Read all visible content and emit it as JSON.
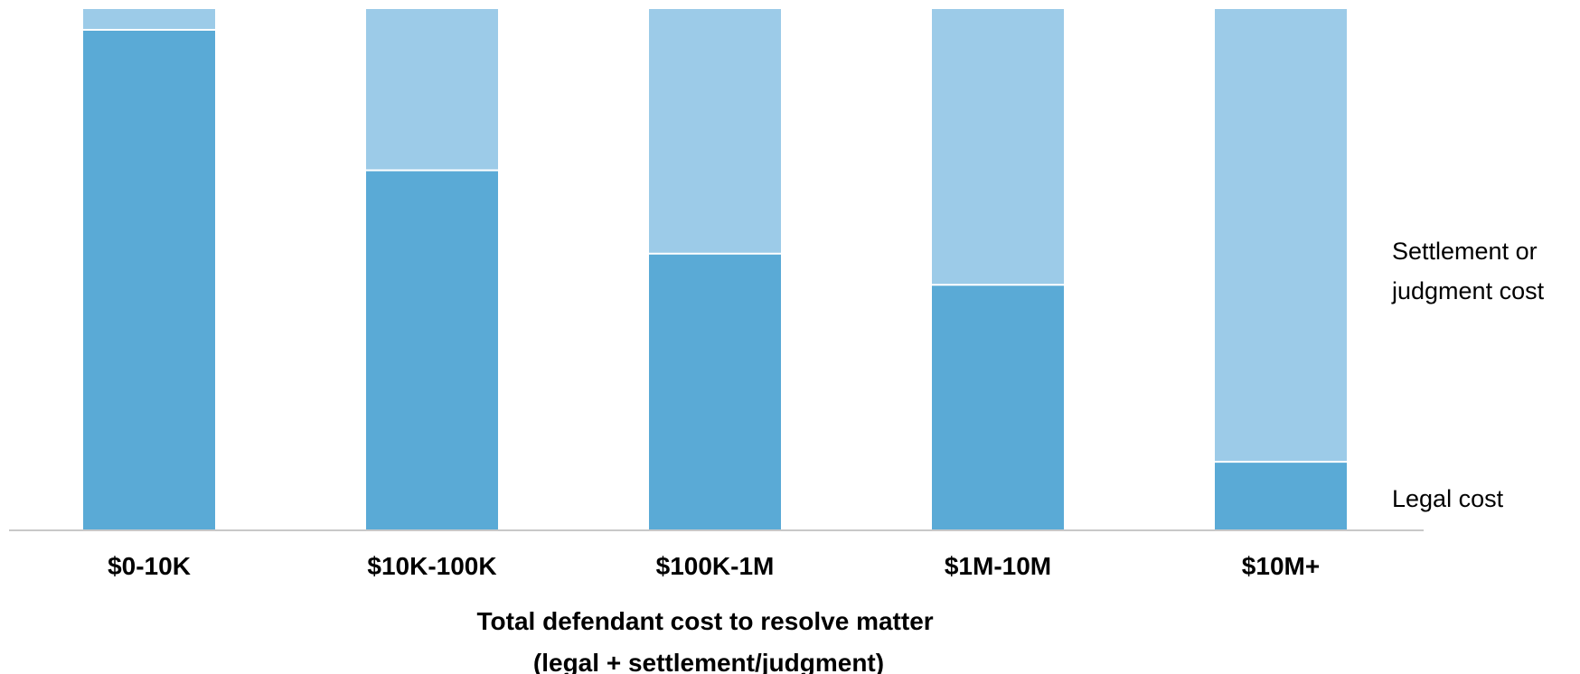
{
  "chart_data": {
    "type": "bar",
    "stacked": true,
    "normalized": true,
    "categories": [
      "$0-10K",
      "$10K-100K",
      "$100K-1M",
      "$1M-10M",
      "$10M+"
    ],
    "series": [
      {
        "name": "Legal cost",
        "color": "#5aaad6",
        "values": [
          96,
          69,
          53,
          47,
          13
        ]
      },
      {
        "name": "Settlement or judgment cost",
        "color": "#9ccbe8",
        "values": [
          4,
          31,
          47,
          53,
          87
        ]
      }
    ],
    "legend_lines": {
      "settlement": [
        "Settlement or",
        "judgment cost"
      ],
      "legal": [
        "Legal cost"
      ]
    },
    "xlabel_lines": [
      "Total defendant cost to resolve matter",
      "(legal + settlement/judgment)"
    ],
    "ylim": [
      0,
      100
    ],
    "legend_position": "right",
    "grid": false,
    "axis_color": "#c8c8c8"
  }
}
